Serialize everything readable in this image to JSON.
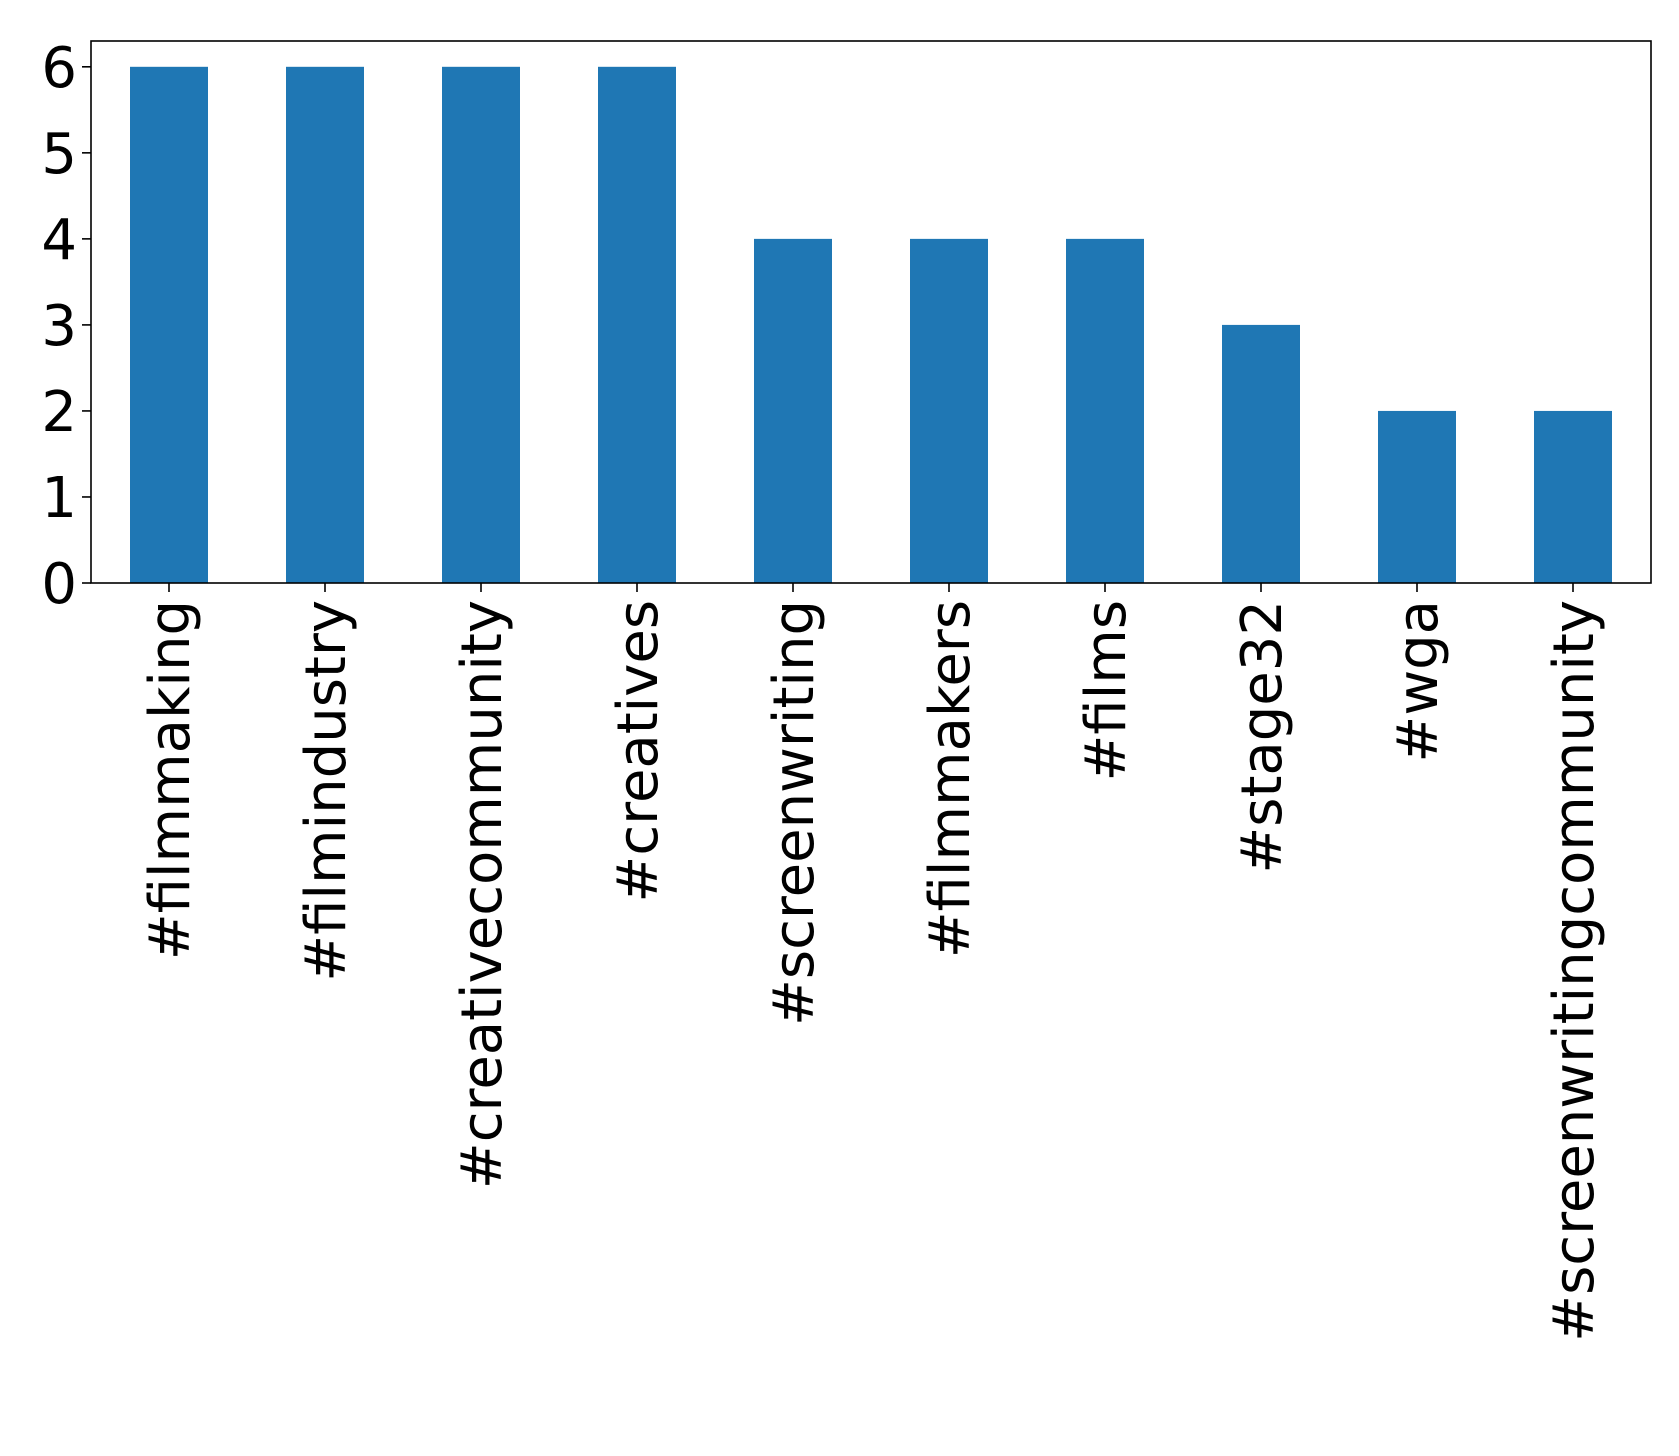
{
  "chart_data": {
    "type": "bar",
    "title": "",
    "xlabel": "",
    "ylabel": "",
    "categories": [
      "#filmmaking",
      "#filmindustry",
      "#creativecommunity",
      "#creatives",
      "#screenwriting",
      "#filmmakers",
      "#films",
      "#stage32",
      "#wga",
      "#screenwritingcommunity"
    ],
    "values": [
      6,
      6,
      6,
      6,
      4,
      4,
      4,
      3,
      2,
      2
    ],
    "ylim": [
      0,
      6.3
    ],
    "yticks": [
      "0",
      "1",
      "2",
      "3",
      "4",
      "5",
      "6"
    ],
    "grid": false,
    "legend": "none",
    "bar_color": "#1f77b4"
  }
}
